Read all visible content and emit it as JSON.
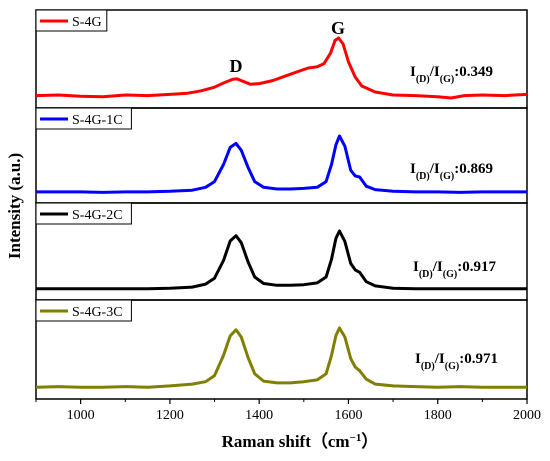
{
  "chart_data": {
    "type": "line",
    "xlabel": "Raman shift（cm",
    "xlabel_sup": "−1",
    "xlabel_close": "）",
    "ylabel": "Intensity (a.u.)",
    "xlim": [
      900,
      2000
    ],
    "xticks": [
      "1000",
      "1200",
      "1400",
      "1600",
      "1800",
      "2000"
    ],
    "xtick_values": [
      1000,
      1200,
      1400,
      1600,
      1800,
      2000
    ],
    "peak_labels": {
      "d": "D",
      "g": "G"
    },
    "ratio_label": {
      "base": "I",
      "sub_d": "(D)",
      "slash": "/",
      "sub_g": "(G)"
    },
    "series": [
      {
        "name": "S-4G",
        "color": "#ff0000",
        "ratio": ":0.349",
        "points": [
          [
            900,
            0.04
          ],
          [
            950,
            0.05
          ],
          [
            1000,
            0.03
          ],
          [
            1050,
            0.02
          ],
          [
            1100,
            0.05
          ],
          [
            1150,
            0.04
          ],
          [
            1200,
            0.06
          ],
          [
            1240,
            0.08
          ],
          [
            1270,
            0.12
          ],
          [
            1300,
            0.18
          ],
          [
            1320,
            0.25
          ],
          [
            1340,
            0.31
          ],
          [
            1350,
            0.32
          ],
          [
            1360,
            0.29
          ],
          [
            1380,
            0.23
          ],
          [
            1400,
            0.24
          ],
          [
            1430,
            0.29
          ],
          [
            1460,
            0.37
          ],
          [
            1490,
            0.45
          ],
          [
            1510,
            0.5
          ],
          [
            1530,
            0.52
          ],
          [
            1545,
            0.57
          ],
          [
            1560,
            0.75
          ],
          [
            1570,
            0.96
          ],
          [
            1578,
            1.0
          ],
          [
            1588,
            0.9
          ],
          [
            1600,
            0.6
          ],
          [
            1615,
            0.35
          ],
          [
            1630,
            0.2
          ],
          [
            1660,
            0.1
          ],
          [
            1700,
            0.05
          ],
          [
            1750,
            0.04
          ],
          [
            1800,
            0.02
          ],
          [
            1830,
            0.0
          ],
          [
            1860,
            0.04
          ],
          [
            1900,
            0.05
          ],
          [
            1950,
            0.04
          ],
          [
            2000,
            0.06
          ]
        ]
      },
      {
        "name": "S-4G-1C",
        "color": "#0000ff",
        "ratio": ":0.869",
        "points": [
          [
            900,
            0.02
          ],
          [
            950,
            0.02
          ],
          [
            1000,
            0.02
          ],
          [
            1050,
            0.01
          ],
          [
            1100,
            0.02
          ],
          [
            1150,
            0.02
          ],
          [
            1200,
            0.03
          ],
          [
            1250,
            0.05
          ],
          [
            1280,
            0.1
          ],
          [
            1300,
            0.2
          ],
          [
            1320,
            0.5
          ],
          [
            1335,
            0.8
          ],
          [
            1348,
            0.87
          ],
          [
            1360,
            0.75
          ],
          [
            1375,
            0.45
          ],
          [
            1390,
            0.2
          ],
          [
            1410,
            0.1
          ],
          [
            1440,
            0.07
          ],
          [
            1470,
            0.07
          ],
          [
            1500,
            0.08
          ],
          [
            1530,
            0.1
          ],
          [
            1550,
            0.2
          ],
          [
            1562,
            0.5
          ],
          [
            1572,
            0.85
          ],
          [
            1580,
            1.0
          ],
          [
            1592,
            0.82
          ],
          [
            1605,
            0.4
          ],
          [
            1615,
            0.3
          ],
          [
            1625,
            0.28
          ],
          [
            1640,
            0.12
          ],
          [
            1660,
            0.06
          ],
          [
            1700,
            0.03
          ],
          [
            1750,
            0.02
          ],
          [
            1800,
            0.02
          ],
          [
            1850,
            0.01
          ],
          [
            1900,
            0.02
          ],
          [
            1950,
            0.02
          ],
          [
            2000,
            0.02
          ]
        ]
      },
      {
        "name": "S-4G-2C",
        "color": "#000000",
        "ratio": ":0.917",
        "points": [
          [
            900,
            0.02
          ],
          [
            950,
            0.02
          ],
          [
            1000,
            0.02
          ],
          [
            1050,
            0.02
          ],
          [
            1100,
            0.02
          ],
          [
            1150,
            0.02
          ],
          [
            1200,
            0.03
          ],
          [
            1250,
            0.05
          ],
          [
            1280,
            0.1
          ],
          [
            1300,
            0.2
          ],
          [
            1320,
            0.5
          ],
          [
            1335,
            0.83
          ],
          [
            1348,
            0.92
          ],
          [
            1360,
            0.8
          ],
          [
            1375,
            0.48
          ],
          [
            1390,
            0.22
          ],
          [
            1410,
            0.11
          ],
          [
            1440,
            0.08
          ],
          [
            1470,
            0.08
          ],
          [
            1500,
            0.09
          ],
          [
            1530,
            0.12
          ],
          [
            1550,
            0.22
          ],
          [
            1562,
            0.52
          ],
          [
            1572,
            0.88
          ],
          [
            1580,
            1.0
          ],
          [
            1592,
            0.82
          ],
          [
            1605,
            0.45
          ],
          [
            1615,
            0.34
          ],
          [
            1625,
            0.3
          ],
          [
            1640,
            0.14
          ],
          [
            1660,
            0.07
          ],
          [
            1700,
            0.03
          ],
          [
            1750,
            0.02
          ],
          [
            1800,
            0.02
          ],
          [
            1850,
            0.02
          ],
          [
            1900,
            0.02
          ],
          [
            1950,
            0.02
          ],
          [
            2000,
            0.02
          ]
        ]
      },
      {
        "name": "S-4G-3C",
        "color": "#808000",
        "ratio": ":0.971",
        "points": [
          [
            900,
            0.03
          ],
          [
            950,
            0.04
          ],
          [
            1000,
            0.03
          ],
          [
            1050,
            0.03
          ],
          [
            1100,
            0.04
          ],
          [
            1150,
            0.03
          ],
          [
            1200,
            0.05
          ],
          [
            1250,
            0.08
          ],
          [
            1280,
            0.12
          ],
          [
            1300,
            0.22
          ],
          [
            1320,
            0.55
          ],
          [
            1335,
            0.87
          ],
          [
            1348,
            0.97
          ],
          [
            1360,
            0.85
          ],
          [
            1375,
            0.52
          ],
          [
            1390,
            0.25
          ],
          [
            1410,
            0.13
          ],
          [
            1440,
            0.1
          ],
          [
            1470,
            0.1
          ],
          [
            1500,
            0.12
          ],
          [
            1530,
            0.15
          ],
          [
            1550,
            0.25
          ],
          [
            1562,
            0.55
          ],
          [
            1572,
            0.88
          ],
          [
            1580,
            1.0
          ],
          [
            1592,
            0.85
          ],
          [
            1605,
            0.5
          ],
          [
            1615,
            0.36
          ],
          [
            1625,
            0.3
          ],
          [
            1640,
            0.16
          ],
          [
            1660,
            0.08
          ],
          [
            1700,
            0.05
          ],
          [
            1750,
            0.04
          ],
          [
            1800,
            0.03
          ],
          [
            1850,
            0.04
          ],
          [
            1900,
            0.03
          ],
          [
            1950,
            0.03
          ],
          [
            2000,
            0.03
          ]
        ]
      }
    ]
  }
}
